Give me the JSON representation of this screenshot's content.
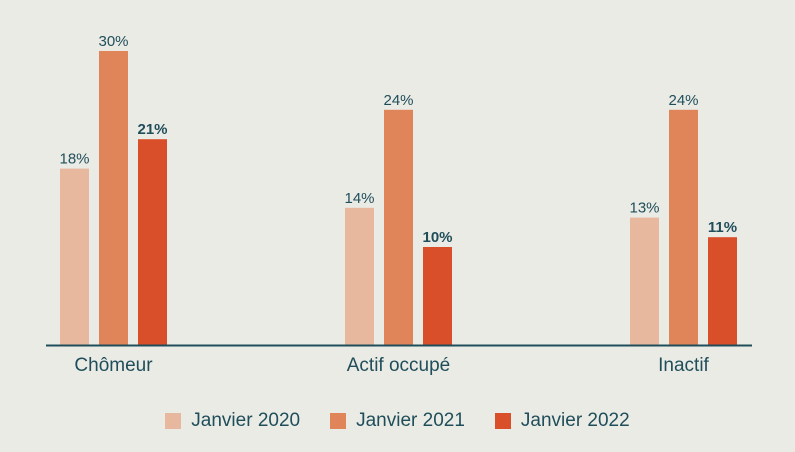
{
  "chart_data": {
    "type": "bar",
    "categories": [
      "Chômeur",
      "Actif occupé",
      "Inactif"
    ],
    "series": [
      {
        "name": "Janvier 2020",
        "color": "#e8b89e",
        "values": [
          18,
          14,
          13
        ],
        "labels": [
          "18%",
          "14%",
          "13%"
        ],
        "bold": false
      },
      {
        "name": "Janvier 2021",
        "color": "#e0845a",
        "values": [
          30,
          24,
          24
        ],
        "labels": [
          "30%",
          "24%",
          "24%"
        ],
        "bold": false
      },
      {
        "name": "Janvier 2022",
        "color": "#d94f2a",
        "values": [
          21,
          10,
          11
        ],
        "labels": [
          "21%",
          "10%",
          "11%"
        ],
        "bold": true
      }
    ],
    "ylim": [
      0,
      30
    ],
    "axis_color": "#1f4e5a",
    "text_color": "#1f4e5a",
    "legend": "bottom-center"
  }
}
